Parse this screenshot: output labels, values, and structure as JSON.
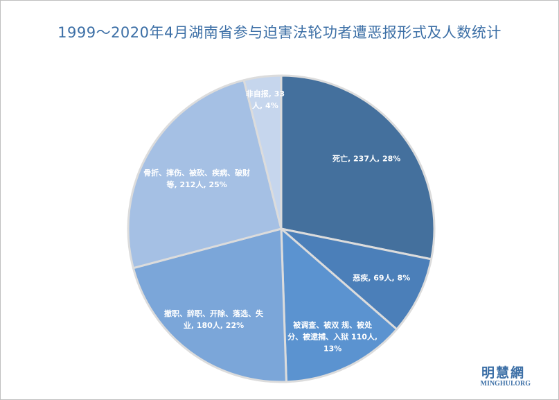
{
  "chart_data": {
    "type": "pie",
    "title": "1999～2020年4月湖南省参与迫害法轮功者遭恶报形式及人数统计",
    "categories": [
      "死亡, 237人, 28%",
      "恶疾, 69人, 8%",
      "被调查、被双 规、被处分、被逮捕、入狱 110人, 13%",
      "撤职、辞职、开除、落选、失业, 180人, 22%",
      "骨折、摔伤、被砍、疾病、破财等, 212人, 25%",
      "非自报, 33人, 4%"
    ],
    "values": [
      237,
      69,
      110,
      180,
      212,
      33
    ],
    "colors": [
      "#44709d",
      "#4b7fb9",
      "#5b93d0",
      "#7ba6d9",
      "#a5c0e4",
      "#c6d6ed"
    ]
  },
  "watermark": {
    "name": "明慧網",
    "site": "MINGHUI.ORG"
  }
}
